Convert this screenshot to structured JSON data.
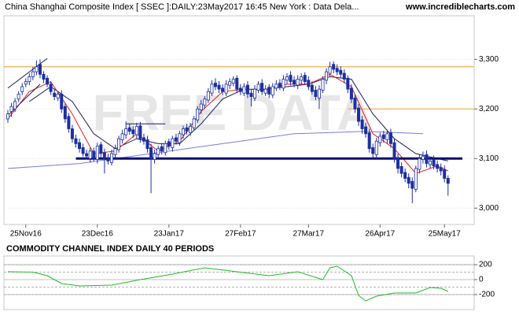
{
  "header": {
    "title": "China Shanghai Composite Index [ SSEC ]:DAILY:23May2017 16:45 New York : Data Dela...",
    "site": "www.incrediblecharts.com"
  },
  "chart_data": [
    {
      "type": "candlestick",
      "watermark": "FREE DATA",
      "up_color": "#ffffff",
      "down_color": "#1d2fa0",
      "edge_color": "#1d2fa0",
      "xlim": [
        -1.1,
        130.3
      ],
      "ylim": [
        2967,
        3388
      ],
      "yticks": [
        {
          "value": 3000,
          "label": "3,000"
        },
        {
          "value": 3100,
          "label": "3,100"
        },
        {
          "value": 3200,
          "label": "3,200"
        },
        {
          "value": 3300,
          "label": "3,300"
        }
      ],
      "xticks": [
        {
          "value": 5,
          "label": "25Nov16"
        },
        {
          "value": 25,
          "label": "23Dec16"
        },
        {
          "value": 45,
          "label": "23Jan17"
        },
        {
          "value": 65,
          "label": "27Feb17"
        },
        {
          "value": 84,
          "label": "27Mar17"
        },
        {
          "value": 104,
          "label": "26Apr17"
        },
        {
          "value": 122,
          "label": "25May17"
        }
      ],
      "open": [
        3180,
        3195,
        3200,
        3220,
        3235,
        3250,
        3255,
        3265,
        3275,
        3290,
        3270,
        3262,
        3250,
        3232,
        3222,
        3230,
        3205,
        3185,
        3160,
        3140,
        3132,
        3122,
        3110,
        3100,
        3115,
        3098,
        3128,
        3112,
        3102,
        3092,
        3108,
        3118,
        3138,
        3148,
        3162,
        3158,
        3148,
        3166,
        3142,
        3138,
        3122,
        3098,
        3108,
        3124,
        3112,
        3134,
        3122,
        3142,
        3132,
        3148,
        3162,
        3152,
        3162,
        3178,
        3198,
        3208,
        3218,
        3232,
        3252,
        3248,
        3242,
        3232,
        3248,
        3252,
        3262,
        3242,
        3232,
        3248,
        3232,
        3222,
        3238,
        3252,
        3232,
        3244,
        3228,
        3242,
        3252,
        3242,
        3258,
        3268,
        3258,
        3248,
        3258,
        3268,
        3258,
        3248,
        3238,
        3222,
        3238,
        3258,
        3272,
        3290,
        3282,
        3278,
        3272,
        3262,
        3242,
        3222,
        3202,
        3178,
        3164,
        3152,
        3122,
        3108,
        3132,
        3148,
        3138,
        3152,
        3132,
        3102,
        3084,
        3072,
        3062,
        3054,
        3038,
        3078,
        3098,
        3108,
        3088,
        3098,
        3088,
        3082,
        3078,
        3060
      ],
      "high": [
        3198,
        3212,
        3222,
        3236,
        3252,
        3262,
        3272,
        3285,
        3298,
        3300,
        3276,
        3268,
        3256,
        3240,
        3236,
        3238,
        3212,
        3192,
        3168,
        3148,
        3140,
        3130,
        3118,
        3122,
        3122,
        3132,
        3134,
        3120,
        3110,
        3118,
        3128,
        3146,
        3158,
        3175,
        3170,
        3165,
        3172,
        3174,
        3150,
        3146,
        3130,
        3118,
        3126,
        3130,
        3136,
        3140,
        3146,
        3150,
        3156,
        3166,
        3170,
        3172,
        3186,
        3206,
        3218,
        3226,
        3242,
        3258,
        3262,
        3256,
        3250,
        3258,
        3262,
        3266,
        3268,
        3250,
        3252,
        3256,
        3240,
        3248,
        3256,
        3260,
        3248,
        3250,
        3252,
        3258,
        3260,
        3268,
        3272,
        3276,
        3266,
        3268,
        3272,
        3274,
        3266,
        3256,
        3246,
        3248,
        3266,
        3282,
        3295,
        3296,
        3290,
        3286,
        3280,
        3268,
        3250,
        3230,
        3210,
        3186,
        3172,
        3160,
        3130,
        3142,
        3152,
        3156,
        3158,
        3160,
        3140,
        3110,
        3092,
        3080,
        3070,
        3062,
        3086,
        3108,
        3114,
        3116,
        3104,
        3106,
        3096,
        3090,
        3086,
        3066
      ],
      "low": [
        3172,
        3184,
        3194,
        3214,
        3228,
        3244,
        3248,
        3258,
        3268,
        3262,
        3252,
        3244,
        3228,
        3218,
        3216,
        3192,
        3172,
        3152,
        3132,
        3122,
        3112,
        3104,
        3098,
        3092,
        3094,
        3090,
        3102,
        3070,
        3088,
        3086,
        3100,
        3112,
        3130,
        3140,
        3148,
        3142,
        3140,
        3132,
        3128,
        3112,
        3030,
        3090,
        3102,
        3108,
        3106,
        3118,
        3114,
        3128,
        3126,
        3140,
        3148,
        3146,
        3156,
        3172,
        3190,
        3200,
        3212,
        3226,
        3238,
        3232,
        3228,
        3226,
        3240,
        3246,
        3232,
        3228,
        3226,
        3222,
        3205,
        3216,
        3232,
        3228,
        3226,
        3222,
        3222,
        3236,
        3238,
        3236,
        3250,
        3248,
        3244,
        3240,
        3250,
        3248,
        3238,
        3228,
        3218,
        3200,
        3232,
        3250,
        3266,
        3272,
        3268,
        3262,
        3252,
        3232,
        3212,
        3192,
        3166,
        3150,
        3142,
        3112,
        3100,
        3100,
        3124,
        3132,
        3130,
        3122,
        3092,
        3070,
        3062,
        3052,
        3040,
        3010,
        3032,
        3070,
        3090,
        3082,
        3080,
        3078,
        3072,
        3066,
        3052,
        3025
      ],
      "close": [
        3190,
        3205,
        3215,
        3230,
        3245,
        3255,
        3265,
        3275,
        3285,
        3270,
        3260,
        3250,
        3235,
        3225,
        3230,
        3200,
        3180,
        3160,
        3140,
        3130,
        3120,
        3110,
        3105,
        3115,
        3100,
        3125,
        3110,
        3100,
        3095,
        3110,
        3120,
        3140,
        3150,
        3160,
        3155,
        3150,
        3165,
        3140,
        3135,
        3120,
        3100,
        3110,
        3120,
        3115,
        3130,
        3125,
        3140,
        3135,
        3150,
        3160,
        3155,
        3165,
        3180,
        3200,
        3210,
        3220,
        3235,
        3250,
        3245,
        3240,
        3235,
        3250,
        3255,
        3260,
        3240,
        3235,
        3245,
        3230,
        3225,
        3240,
        3250,
        3235,
        3240,
        3230,
        3245,
        3250,
        3245,
        3260,
        3265,
        3255,
        3250,
        3260,
        3265,
        3255,
        3245,
        3235,
        3225,
        3240,
        3260,
        3275,
        3285,
        3280,
        3275,
        3270,
        3260,
        3240,
        3220,
        3200,
        3175,
        3160,
        3150,
        3120,
        3110,
        3135,
        3145,
        3140,
        3150,
        3130,
        3100,
        3080,
        3070,
        3060,
        3050,
        3040,
        3080,
        3100,
        3105,
        3090,
        3095,
        3085,
        3080,
        3075,
        3060,
        3050
      ],
      "lines": [
        {
          "color": "#f0a030",
          "width": 1,
          "x": [
            -1.1,
            130.3
          ],
          "values": [
            3285,
            3285
          ]
        },
        {
          "color": "#f0a030",
          "width": 1,
          "x": [
            95,
            130.3
          ],
          "values": [
            3200,
            3200
          ]
        },
        {
          "color": "#7b7bdc",
          "width": 1,
          "x": [
            0,
            20,
            40,
            60,
            80,
            100,
            116
          ],
          "values": [
            3080,
            3090,
            3110,
            3130,
            3150,
            3155,
            3150
          ]
        },
        {
          "color": "#1a1a60",
          "width": 1,
          "x": [
            6,
            12,
            18,
            24,
            30,
            36,
            42,
            48,
            54,
            60,
            66,
            72,
            78,
            84,
            90,
            96,
            102,
            108,
            114,
            120,
            123
          ],
          "values": [
            3215,
            3245,
            3215,
            3150,
            3120,
            3140,
            3130,
            3130,
            3170,
            3220,
            3240,
            3240,
            3245,
            3250,
            3265,
            3260,
            3190,
            3140,
            3110,
            3100,
            3095
          ]
        },
        {
          "color": "#e02020",
          "width": 1,
          "x": [
            0,
            6,
            12,
            18,
            24,
            30,
            36,
            42,
            48,
            54,
            60,
            66,
            72,
            78,
            84,
            90,
            96,
            102,
            108,
            114,
            120,
            123
          ],
          "values": [
            3180,
            3235,
            3255,
            3190,
            3110,
            3115,
            3150,
            3115,
            3135,
            3195,
            3235,
            3240,
            3238,
            3250,
            3250,
            3270,
            3245,
            3150,
            3120,
            3070,
            3085,
            3075
          ]
        },
        {
          "color": "#1a1a60",
          "width": 1,
          "x": [
            0,
            11
          ],
          "values": [
            3242,
            3302
          ]
        },
        {
          "color": "#1a1a60",
          "width": 1,
          "x": [
            0,
            9
          ],
          "values": [
            3187,
            3250
          ]
        },
        {
          "color": "#1a1a60",
          "width": 1,
          "x": [
            33,
            44
          ],
          "values": [
            3170,
            3170
          ]
        },
        {
          "color": "#0b0b70",
          "width": 3,
          "x": [
            19,
            127
          ],
          "values": [
            3100,
            3100
          ]
        }
      ]
    },
    {
      "type": "line",
      "title": "COMMODITY CHANNEL INDEX DAILY 40 PERIODS",
      "color": "#22bb22",
      "xlim": [
        -1.1,
        130.3
      ],
      "ylim": [
        -400,
        316
      ],
      "yticks": [
        {
          "value": -200,
          "label": "-200"
        },
        0,
        200
      ],
      "ref_lines": [
        200,
        100,
        -100,
        -200
      ],
      "x": [
        0,
        7,
        11,
        15,
        20,
        29,
        37,
        46,
        55,
        64,
        73,
        81,
        88,
        90,
        92,
        96,
        98,
        100,
        103,
        108,
        114,
        118,
        121,
        123
      ],
      "values": [
        105,
        100,
        53,
        -53,
        -84,
        -74,
        0,
        74,
        158,
        105,
        53,
        105,
        0,
        158,
        179,
        53,
        -211,
        -284,
        -221,
        -179,
        -179,
        -105,
        -116,
        -158
      ]
    }
  ]
}
